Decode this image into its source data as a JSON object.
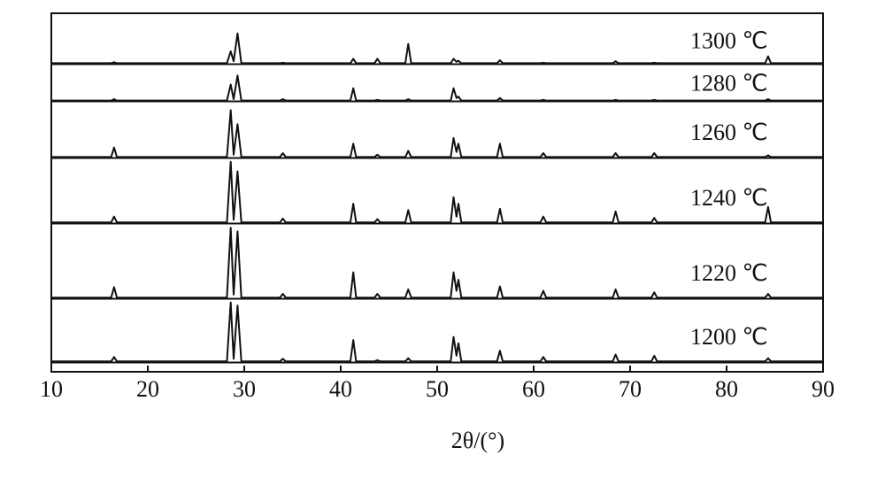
{
  "chart_data": {
    "type": "line",
    "xlabel": "2θ/(°)",
    "xlim": [
      10,
      90
    ],
    "xticks": [
      10,
      20,
      30,
      40,
      50,
      60,
      70,
      80,
      90
    ],
    "ylim": [
      0,
      100
    ],
    "x": [
      10,
      16.2,
      16.5,
      16.8,
      28.2,
      28.6,
      28.9,
      29.3,
      29.7,
      33.7,
      34,
      34.3,
      41,
      41.3,
      41.6,
      43.5,
      43.8,
      44.1,
      46.7,
      47,
      47.3,
      51.4,
      51.7,
      52,
      52.2,
      52.5,
      56.2,
      56.5,
      56.8,
      60.7,
      61,
      61.3,
      68.2,
      68.5,
      68.8,
      72.2,
      72.5,
      72.8,
      84,
      84.3,
      84.6,
      90
    ],
    "series": [
      {
        "name": "1300 ℃",
        "color": "#111111",
        "values": [
          1,
          1,
          3,
          1,
          1,
          25,
          5,
          61,
          1,
          1,
          2,
          1,
          1,
          10,
          1,
          1,
          10,
          1,
          1,
          40,
          1,
          1,
          10,
          4,
          6,
          1,
          1,
          7,
          1,
          1,
          2,
          1,
          1,
          5,
          1,
          1,
          2,
          1,
          1,
          15,
          1,
          1
        ]
      },
      {
        "name": "1280 ℃",
        "color": "#111111",
        "values": [
          1,
          1,
          5,
          1,
          1,
          45,
          5,
          70,
          1,
          1,
          5,
          1,
          1,
          35,
          1,
          1,
          3,
          1,
          1,
          5,
          1,
          1,
          35,
          8,
          12,
          1,
          1,
          8,
          1,
          1,
          3,
          1,
          1,
          3,
          1,
          1,
          3,
          1,
          1,
          5,
          1,
          1
        ]
      },
      {
        "name": "1260 ℃",
        "color": "#111111",
        "values": [
          1,
          1,
          18,
          1,
          1,
          85,
          5,
          60,
          1,
          1,
          8,
          1,
          1,
          25,
          1,
          1,
          5,
          1,
          1,
          12,
          1,
          1,
          35,
          10,
          25,
          1,
          1,
          25,
          1,
          1,
          8,
          1,
          1,
          8,
          1,
          1,
          8,
          1,
          1,
          4,
          1,
          1
        ]
      },
      {
        "name": "1240 ℃",
        "color": "#111111",
        "values": [
          1,
          1,
          10,
          1,
          1,
          95,
          5,
          80,
          1,
          1,
          7,
          1,
          1,
          30,
          1,
          1,
          6,
          1,
          1,
          20,
          1,
          1,
          40,
          10,
          30,
          1,
          1,
          22,
          1,
          1,
          10,
          1,
          1,
          18,
          1,
          1,
          8,
          1,
          1,
          25,
          1,
          1
        ]
      },
      {
        "name": "1220 ℃",
        "color": "#111111",
        "values": [
          1,
          1,
          15,
          1,
          1,
          95,
          5,
          90,
          1,
          1,
          6,
          1,
          1,
          35,
          1,
          1,
          6,
          1,
          1,
          12,
          1,
          1,
          35,
          10,
          25,
          1,
          1,
          16,
          1,
          1,
          10,
          1,
          1,
          12,
          1,
          1,
          8,
          1,
          1,
          6,
          1,
          1
        ]
      },
      {
        "name": "1200 ℃",
        "color": "#111111",
        "values": [
          1,
          1,
          8,
          1,
          1,
          95,
          5,
          90,
          1,
          1,
          5,
          1,
          1,
          35,
          1,
          1,
          3,
          1,
          1,
          6,
          1,
          1,
          40,
          10,
          30,
          1,
          1,
          18,
          1,
          1,
          8,
          1,
          1,
          12,
          1,
          1,
          10,
          1,
          1,
          6,
          1,
          1
        ]
      }
    ]
  }
}
